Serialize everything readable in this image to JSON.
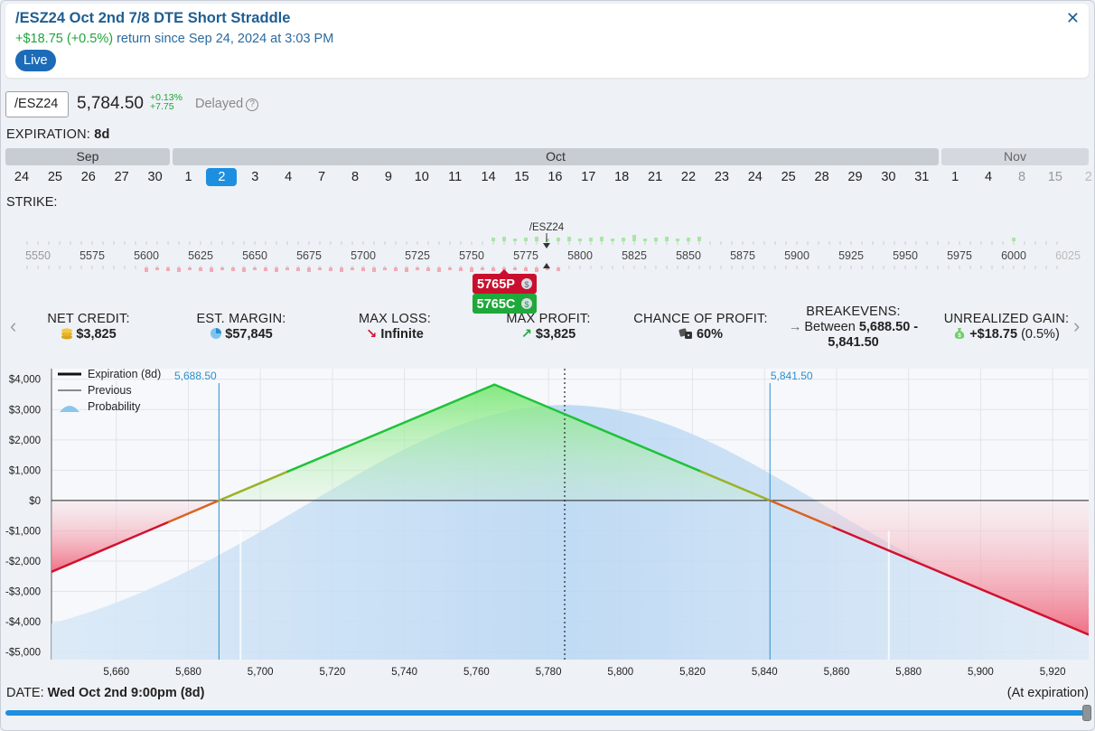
{
  "header": {
    "title": "/ESZ24 Oct 2nd 7/8 DTE Short Straddle",
    "gain_amount": "+$18.75",
    "gain_pct": "(+0.5%)",
    "return_text": "return since Sep 24, 2024 at 3:03 PM",
    "live_badge": "Live",
    "close_icon": "close-icon"
  },
  "quote": {
    "symbol": "/ESZ24",
    "price": "5,784.50",
    "change_pct": "+0.13%",
    "change_abs": "+7.75",
    "delayed_label": "Delayed",
    "delayed_icon": "?"
  },
  "expiration": {
    "label": "EXPIRATION:",
    "value": "8d",
    "months": [
      "Sep",
      "Oct",
      "Nov"
    ],
    "sep_days": [
      "24",
      "25",
      "26",
      "27",
      "30"
    ],
    "oct_days": [
      "1",
      "2",
      "3",
      "4",
      "7",
      "8",
      "9",
      "10",
      "11",
      "14",
      "15",
      "16",
      "17",
      "18",
      "21",
      "22",
      "23",
      "24",
      "25",
      "28",
      "29",
      "30",
      "31"
    ],
    "nov_days": [
      "1",
      "4",
      "8",
      "15",
      "2"
    ],
    "selected": "2"
  },
  "strike": {
    "label": "STRIKE:",
    "underlying_label": "/ESZ24",
    "ticks": [
      "5550",
      "5575",
      "5600",
      "5625",
      "5650",
      "5675",
      "5700",
      "5725",
      "5750",
      "5775",
      "5800",
      "5825",
      "5850",
      "5875",
      "5900",
      "5925",
      "5950",
      "5975",
      "6000",
      "6025"
    ],
    "put_leg": "5765P",
    "call_leg": "5765C",
    "leg_icon": "$",
    "colors": {
      "put": "#c8102e",
      "call": "#1ea93a"
    }
  },
  "metrics": {
    "net_credit_label": "NET CREDIT:",
    "net_credit_value": "$3,825",
    "est_margin_label": "EST. MARGIN:",
    "est_margin_value": "$57,845",
    "max_loss_label": "MAX LOSS:",
    "max_loss_value": "Infinite",
    "max_profit_label": "MAX PROFIT:",
    "max_profit_value": "$3,825",
    "chance_label": "CHANCE OF PROFIT:",
    "chance_value": "60%",
    "breakevens_label": "BREAKEVENS:",
    "breakevens_prefix": "Between",
    "breakevens_value1": "5,688.50 -",
    "breakevens_value2": "5,841.50",
    "unrealized_label": "UNREALIZED GAIN:",
    "unrealized_value": "+$18.75",
    "unrealized_pct": "(0.5%)",
    "nav_prev": "‹",
    "nav_next": "›"
  },
  "chart_data": {
    "type": "line",
    "series": [
      {
        "name": "Expiration (8d)",
        "x": [
          5642,
          5688.5,
          5765,
          5841.5,
          5930
        ],
        "y": [
          -2355,
          0,
          3825,
          0,
          -4425
        ]
      }
    ],
    "legend": [
      "Expiration (8d)",
      "Previous",
      "Probability"
    ],
    "legend_placement": "top-left",
    "breakeven_labels": [
      "5,688.50",
      "5,841.50"
    ],
    "breakevens": [
      5688.5,
      5841.5
    ],
    "current_price": 5784.5,
    "xlim": [
      5642,
      5930
    ],
    "ylim": [
      -5250,
      4350
    ],
    "x_ticks": [
      5660,
      5680,
      5700,
      5720,
      5740,
      5760,
      5780,
      5800,
      5820,
      5840,
      5860,
      5880,
      5900,
      5920
    ],
    "x_tick_labels": [
      "5,660",
      "5,680",
      "5,700",
      "5,720",
      "5,740",
      "5,760",
      "5,780",
      "5,800",
      "5,820",
      "5,840",
      "5,860",
      "5,880",
      "5,900",
      "5,920"
    ],
    "y_ticks": [
      4000,
      3000,
      2000,
      1000,
      0,
      -1000,
      -2000,
      -3000,
      -4000,
      -5000
    ],
    "y_tick_labels": [
      "$4,000",
      "$3,000",
      "$2,000",
      "$1,000",
      "$0",
      "-$1,000",
      "-$2,000",
      "-$3,000",
      "-$4,000",
      "-$5,000"
    ],
    "grid": true,
    "colors": {
      "profit": "#1ec23a",
      "loss": "#d0122f",
      "probability": "#b9d7f2",
      "breakeven": "#2a8fd0"
    }
  },
  "footer": {
    "date_label": "DATE:",
    "date_value": "Wed Oct 2nd 9:00pm (8d)",
    "at_expiration": "(At expiration)",
    "slider_value": 1.0
  }
}
